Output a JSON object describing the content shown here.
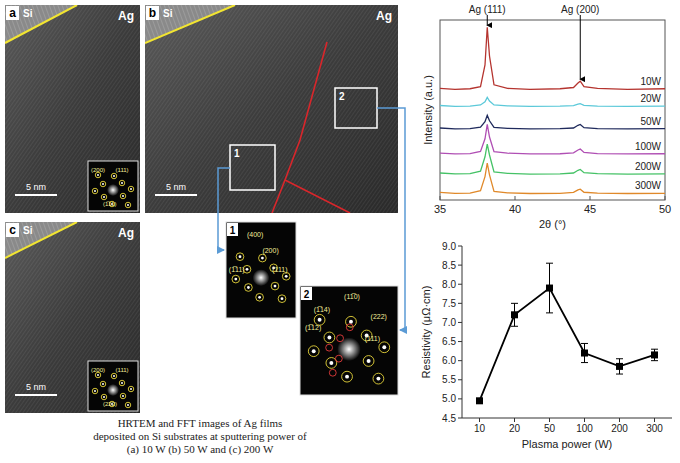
{
  "figure": {
    "panels": [
      {
        "letter": "a",
        "left_label": "Si",
        "right_label": "Ag",
        "scale_bar": "5 nm",
        "fft_labels": [
          "(200)",
          "(111)",
          "(1̅11)"
        ]
      },
      {
        "letter": "b",
        "left_label": "Si",
        "right_label": "Ag",
        "scale_bar": "5 nm",
        "regions": [
          "1",
          "2"
        ]
      },
      {
        "letter": "c",
        "left_label": "Si",
        "right_label": "Ag",
        "scale_bar": "5 nm",
        "fft_labels": [
          "(200)",
          "(111)",
          "(222)"
        ]
      }
    ],
    "insets": [
      {
        "number": "1",
        "labels": [
          "(400)",
          "(200)",
          "(1̅11)",
          "(111)"
        ]
      },
      {
        "number": "2",
        "labels": [
          "(1̅14)",
          "(1̅12)",
          "(11̅0)",
          "(222)",
          "(111)"
        ]
      }
    ],
    "caption": [
      "HRTEM and FFT images of Ag films",
      "deposited on Si substrates at sputtering power of",
      "(a) 10 W (b) 50 W and (c) 200 W"
    ]
  },
  "chart_data": [
    {
      "type": "line",
      "x_label": "2θ (°)",
      "y_label": "Intensity (a.u.)",
      "x": [
        35,
        36,
        37,
        37.7,
        38.0,
        38.15,
        38.3,
        38.6,
        39.5,
        41,
        43,
        43.9,
        44.2,
        44.35,
        44.6,
        45.5,
        47.5,
        50
      ],
      "series": [
        {
          "name": "10W",
          "color": "#b5342f",
          "values": [
            62,
            61.5,
            61.8,
            63,
            75,
            96,
            80,
            64,
            62,
            61.5,
            61.8,
            62.5,
            65,
            66,
            63,
            62,
            61.5,
            61.8
          ]
        },
        {
          "name": "20W",
          "color": "#5cc9d9",
          "values": [
            52.5,
            52,
            52.2,
            52.8,
            54.5,
            57,
            55,
            52.8,
            52.3,
            52,
            52.1,
            52.4,
            53.2,
            53.5,
            52.6,
            52.2,
            52,
            52.1
          ]
        },
        {
          "name": "50W",
          "color": "#1f2a5c",
          "values": [
            40,
            39.5,
            39.7,
            40.5,
            43.5,
            47,
            44,
            40.3,
            39.8,
            39.5,
            39.6,
            40,
            41.5,
            42,
            40.2,
            39.7,
            39.5,
            39.6
          ]
        },
        {
          "name": "100W",
          "color": "#b04fb4",
          "values": [
            26,
            25.6,
            25.8,
            27,
            34,
            42,
            35,
            26.8,
            26,
            25.6,
            25.7,
            26.2,
            27.8,
            28.3,
            26.4,
            25.8,
            25.6,
            25.7
          ]
        },
        {
          "name": "200W",
          "color": "#45c266",
          "values": [
            15,
            14.5,
            14.6,
            16,
            24,
            31,
            25,
            15.6,
            14.8,
            14.4,
            14.5,
            15,
            16.5,
            17,
            15.2,
            14.6,
            14.4,
            14.5
          ]
        },
        {
          "name": "300W",
          "color": "#e0892a",
          "values": [
            4.2,
            3.7,
            3.8,
            5.2,
            13,
            20.5,
            14,
            4.8,
            4,
            3.6,
            3.7,
            4.2,
            5.6,
            6,
            4.3,
            3.8,
            3.6,
            3.7
          ]
        }
      ],
      "xlim": [
        35,
        50
      ],
      "xticks": [
        35,
        40,
        45,
        50
      ],
      "ylim": [
        0,
        100
      ],
      "tick_labels": "x",
      "annotations": [
        {
          "text": "Ag (111)",
          "x": 38.15
        },
        {
          "text": "Ag (200)",
          "x": 44.35
        }
      ]
    },
    {
      "type": "line",
      "x_label": "Plasma power (W)",
      "y_label": "Resistivity (μΩ·cm)",
      "categories": [
        "10",
        "20",
        "50",
        "100",
        "200",
        "300"
      ],
      "values": [
        4.95,
        7.2,
        7.9,
        6.2,
        5.85,
        6.15
      ],
      "errors": [
        0.05,
        0.3,
        0.65,
        0.25,
        0.2,
        0.15
      ],
      "ylim": [
        4.5,
        9.0
      ],
      "yticks": [
        4.5,
        {
          "value": 5,
          "label": "5.0"
        },
        5.5,
        {
          "value": 6,
          "label": "6.0"
        },
        6.5,
        {
          "value": 7,
          "label": "7.0"
        },
        7.5,
        {
          "value": 8,
          "label": "8.0"
        },
        8.5,
        {
          "value": 9,
          "label": "9.0"
        }
      ],
      "color": "#000000",
      "marker": "square",
      "grid": false
    }
  ]
}
